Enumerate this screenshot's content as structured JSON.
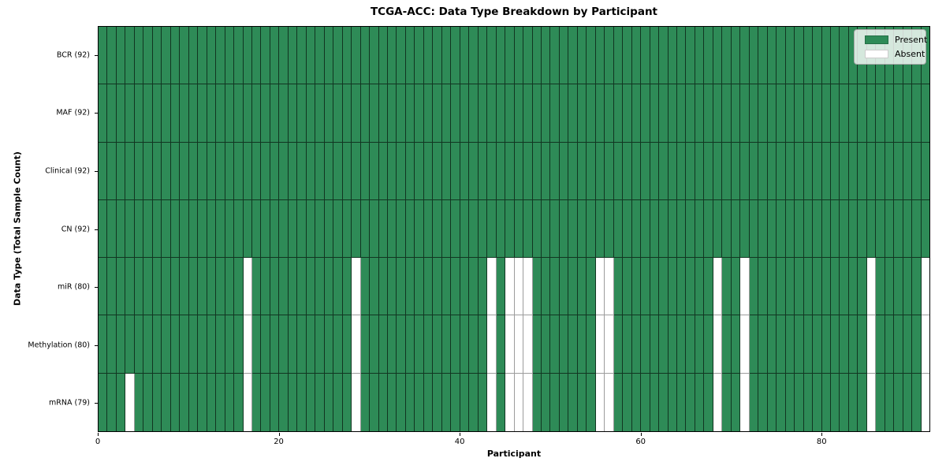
{
  "chart_data": {
    "type": "heatmap",
    "title": "TCGA-ACC: Data Type Breakdown by Participant",
    "xlabel": "Participant",
    "ylabel": "Data Type (Total Sample Count)",
    "n_participants": 92,
    "x_ticks": [
      0,
      20,
      40,
      60,
      80
    ],
    "x_range": [
      0,
      92
    ],
    "legend_position": "upper-right",
    "colors": {
      "present": "#2e8b57",
      "absent": "#ffffff",
      "cell_edge": "#1a1a1a",
      "spine": "#000000"
    },
    "rows": [
      {
        "label": "BCR (92)",
        "present_count": 92,
        "absent_participants": []
      },
      {
        "label": "MAF (92)",
        "present_count": 92,
        "absent_participants": []
      },
      {
        "label": "Clinical (92)",
        "present_count": 92,
        "absent_participants": []
      },
      {
        "label": "CN (92)",
        "present_count": 92,
        "absent_participants": []
      },
      {
        "label": "miR (80)",
        "present_count": 80,
        "absent_participants": [
          16,
          28,
          43,
          45,
          46,
          47,
          55,
          56,
          68,
          71,
          85,
          91
        ]
      },
      {
        "label": "Methylation (80)",
        "present_count": 80,
        "absent_participants": [
          16,
          28,
          43,
          45,
          46,
          47,
          55,
          56,
          68,
          71,
          85,
          91
        ]
      },
      {
        "label": "mRNA (79)",
        "present_count": 79,
        "absent_participants": [
          3,
          16,
          28,
          43,
          45,
          46,
          47,
          55,
          56,
          68,
          71,
          85,
          91
        ]
      }
    ],
    "legend": {
      "items": [
        {
          "label": "Present",
          "color": "#2e8b57"
        },
        {
          "label": "Absent",
          "color": "#ffffff"
        }
      ]
    }
  }
}
